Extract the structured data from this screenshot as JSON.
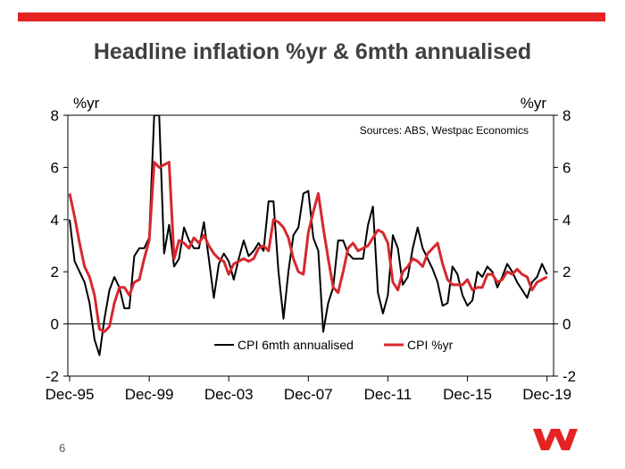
{
  "slide": {
    "title": "Headline inflation %yr & 6mth annualised",
    "page_number": "6",
    "accent_color": "#e62222",
    "logo_icon": "westpac-w-logo-icon"
  },
  "chart_data": {
    "type": "line",
    "title": "Headline inflation %yr & 6mth annualised",
    "left_axis_unit": "%yr",
    "right_axis_unit": "%yr",
    "source_note": "Sources: ABS, Westpac Economics",
    "ylim": [
      -2,
      8
    ],
    "yticks": [
      8,
      6,
      4,
      2,
      0,
      -2
    ],
    "xlim": [
      1995.83,
      2020.25
    ],
    "xticks": [
      {
        "label": "Dec-95",
        "x": 1995.92
      },
      {
        "label": "Dec-99",
        "x": 1999.92
      },
      {
        "label": "Dec-03",
        "x": 2003.92
      },
      {
        "label": "Dec-07",
        "x": 2007.92
      },
      {
        "label": "Dec-11",
        "x": 2011.92
      },
      {
        "label": "Dec-15",
        "x": 2015.92
      },
      {
        "label": "Dec-19",
        "x": 2019.92
      }
    ],
    "grid": false,
    "legend_position": "bottom-center",
    "x": [
      1995.92,
      1996.17,
      1996.42,
      1996.67,
      1996.92,
      1997.17,
      1997.42,
      1997.67,
      1997.92,
      1998.17,
      1998.42,
      1998.67,
      1998.92,
      1999.17,
      1999.42,
      1999.67,
      1999.92,
      2000.17,
      2000.42,
      2000.67,
      2000.92,
      2001.17,
      2001.42,
      2001.67,
      2001.92,
      2002.17,
      2002.42,
      2002.67,
      2002.92,
      2003.17,
      2003.42,
      2003.67,
      2003.92,
      2004.17,
      2004.42,
      2004.67,
      2004.92,
      2005.17,
      2005.42,
      2005.67,
      2005.92,
      2006.17,
      2006.42,
      2006.67,
      2006.92,
      2007.17,
      2007.42,
      2007.67,
      2007.92,
      2008.17,
      2008.42,
      2008.67,
      2008.92,
      2009.17,
      2009.42,
      2009.67,
      2009.92,
      2010.17,
      2010.42,
      2010.67,
      2010.92,
      2011.17,
      2011.42,
      2011.67,
      2011.92,
      2012.17,
      2012.42,
      2012.67,
      2012.92,
      2013.17,
      2013.42,
      2013.67,
      2013.92,
      2014.17,
      2014.42,
      2014.67,
      2014.92,
      2015.17,
      2015.42,
      2015.67,
      2015.92,
      2016.17,
      2016.42,
      2016.67,
      2016.92,
      2017.17,
      2017.42,
      2017.67,
      2017.92,
      2018.17,
      2018.42,
      2018.67,
      2018.92,
      2019.17,
      2019.42,
      2019.67,
      2019.92
    ],
    "series": [
      {
        "name": "CPI 6mth annualised",
        "color": "#000000",
        "values": [
          4.0,
          2.4,
          2.0,
          1.6,
          0.8,
          -0.6,
          -1.2,
          0.2,
          1.3,
          1.8,
          1.4,
          0.6,
          0.6,
          2.6,
          2.9,
          2.9,
          3.3,
          8.0,
          8.0,
          2.7,
          3.8,
          2.2,
          2.5,
          3.7,
          3.2,
          2.9,
          2.9,
          3.9,
          2.5,
          1.0,
          2.3,
          2.7,
          2.4,
          1.7,
          2.5,
          3.2,
          2.6,
          2.8,
          3.1,
          2.8,
          4.7,
          4.7,
          2.0,
          0.2,
          2.0,
          3.4,
          3.7,
          5.0,
          5.1,
          3.3,
          2.8,
          -0.3,
          0.8,
          1.4,
          3.2,
          3.2,
          2.7,
          2.5,
          2.5,
          2.5,
          3.8,
          4.5,
          1.2,
          0.4,
          1.1,
          3.4,
          2.9,
          1.5,
          1.8,
          2.9,
          3.7,
          2.9,
          2.5,
          2.1,
          1.6,
          0.7,
          0.8,
          2.2,
          1.9,
          1.1,
          0.7,
          0.9,
          2.0,
          1.8,
          2.2,
          2.0,
          1.4,
          1.8,
          2.3,
          2.0,
          1.6,
          1.3,
          1.0,
          1.6,
          1.8,
          2.3,
          1.9
        ]
      },
      {
        "name": "CPI %yr",
        "color": "#d7282f",
        "values": [
          5.0,
          4.1,
          3.1,
          2.2,
          1.8,
          1.1,
          -0.2,
          -0.3,
          -0.1,
          0.8,
          1.4,
          1.4,
          1.1,
          1.6,
          1.7,
          2.5,
          3.2,
          6.2,
          6.0,
          6.1,
          6.2,
          2.5,
          3.2,
          3.1,
          2.9,
          3.3,
          3.1,
          3.4,
          3.0,
          2.7,
          2.5,
          2.4,
          1.9,
          2.3,
          2.4,
          2.5,
          2.4,
          2.5,
          2.9,
          3.0,
          2.8,
          4.0,
          3.9,
          3.7,
          3.3,
          2.5,
          2.0,
          1.9,
          3.5,
          4.3,
          5.0,
          3.7,
          2.5,
          1.4,
          1.2,
          2.0,
          2.9,
          3.1,
          2.8,
          2.9,
          3.0,
          3.3,
          3.6,
          3.5,
          3.1,
          1.6,
          1.3,
          2.0,
          2.2,
          2.5,
          2.4,
          2.2,
          2.7,
          2.9,
          3.1,
          2.3,
          1.7,
          1.5,
          1.5,
          1.5,
          1.7,
          1.3,
          1.4,
          1.4,
          1.9,
          1.9,
          1.6,
          1.7,
          2.0,
          1.9,
          2.1,
          1.9,
          1.8,
          1.3,
          1.6,
          1.7,
          1.8
        ]
      }
    ]
  }
}
